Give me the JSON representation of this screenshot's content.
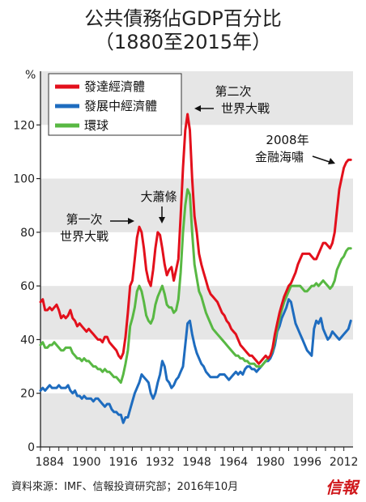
{
  "chart_data": {
    "type": "line",
    "title": "公共債務佔GDP百分比",
    "subtitle": "（1880至2015年）",
    "ylabel": "%",
    "ylim": [
      0,
      140
    ],
    "y_ticks": [
      0,
      20,
      40,
      60,
      80,
      100,
      120
    ],
    "x_ticks": [
      1884,
      1900,
      1916,
      1932,
      1948,
      1964,
      1980,
      1996,
      2012
    ],
    "xlim": [
      1880,
      2016
    ],
    "legend_position": "top-left",
    "grid": "alternating horizontal bands",
    "series": [
      {
        "name": "發達經濟體",
        "color": "#e3101c",
        "x": [
          1880,
          1881,
          1882,
          1883,
          1884,
          1885,
          1886,
          1887,
          1888,
          1889,
          1890,
          1891,
          1892,
          1893,
          1894,
          1895,
          1896,
          1897,
          1898,
          1899,
          1900,
          1901,
          1902,
          1903,
          1904,
          1905,
          1906,
          1907,
          1908,
          1909,
          1910,
          1911,
          1912,
          1913,
          1914,
          1915,
          1916,
          1917,
          1918,
          1919,
          1920,
          1921,
          1922,
          1923,
          1924,
          1925,
          1926,
          1927,
          1928,
          1929,
          1930,
          1931,
          1932,
          1933,
          1934,
          1935,
          1936,
          1937,
          1938,
          1939,
          1940,
          1941,
          1942,
          1943,
          1944,
          1945,
          1946,
          1947,
          1948,
          1949,
          1950,
          1951,
          1952,
          1953,
          1954,
          1955,
          1956,
          1957,
          1958,
          1959,
          1960,
          1961,
          1962,
          1963,
          1964,
          1965,
          1966,
          1967,
          1968,
          1969,
          1970,
          1971,
          1972,
          1973,
          1974,
          1975,
          1976,
          1977,
          1978,
          1979,
          1980,
          1981,
          1982,
          1983,
          1984,
          1985,
          1986,
          1987,
          1988,
          1989,
          1990,
          1991,
          1992,
          1993,
          1994,
          1995,
          1996,
          1997,
          1998,
          1999,
          2000,
          2001,
          2002,
          2003,
          2004,
          2005,
          2006,
          2007,
          2008,
          2009,
          2010,
          2011,
          2012,
          2013,
          2014,
          2015
        ],
        "values": [
          54,
          55,
          51,
          51,
          52,
          51,
          52,
          53,
          51,
          48,
          49,
          48,
          49,
          51,
          48,
          47,
          45,
          46,
          45,
          44,
          43,
          44,
          43,
          42,
          41,
          40,
          40,
          39,
          41,
          41,
          39,
          38,
          37,
          36,
          34,
          33,
          35,
          41,
          50,
          60,
          62,
          70,
          78,
          82,
          80,
          74,
          66,
          62,
          60,
          66,
          74,
          80,
          79,
          74,
          68,
          64,
          66,
          67,
          62,
          66,
          70,
          86,
          104,
          118,
          124,
          118,
          100,
          86,
          80,
          72,
          68,
          65,
          62,
          59,
          57,
          56,
          55,
          54,
          52,
          50,
          49,
          47,
          46,
          44,
          43,
          42,
          40,
          38,
          37,
          36,
          35,
          34,
          34,
          33,
          32,
          31,
          32,
          33,
          34,
          33,
          34,
          37,
          42,
          46,
          50,
          53,
          56,
          58,
          60,
          61,
          63,
          65,
          68,
          70,
          72,
          72,
          72,
          72,
          71,
          70,
          70,
          72,
          74,
          76,
          76,
          75,
          74,
          76,
          80,
          88,
          96,
          100,
          104,
          106,
          107,
          107
        ]
      },
      {
        "name": "發展中經濟體",
        "color": "#1e6cbf",
        "x": [
          1880,
          1881,
          1882,
          1883,
          1884,
          1885,
          1886,
          1887,
          1888,
          1889,
          1890,
          1891,
          1892,
          1893,
          1894,
          1895,
          1896,
          1897,
          1898,
          1899,
          1900,
          1901,
          1902,
          1903,
          1904,
          1905,
          1906,
          1907,
          1908,
          1909,
          1910,
          1911,
          1912,
          1913,
          1914,
          1915,
          1916,
          1917,
          1918,
          1919,
          1920,
          1921,
          1922,
          1923,
          1924,
          1925,
          1926,
          1927,
          1928,
          1929,
          1930,
          1931,
          1932,
          1933,
          1934,
          1935,
          1936,
          1937,
          1938,
          1939,
          1940,
          1941,
          1942,
          1943,
          1944,
          1945,
          1946,
          1947,
          1948,
          1949,
          1950,
          1951,
          1952,
          1953,
          1954,
          1955,
          1956,
          1957,
          1958,
          1959,
          1960,
          1961,
          1962,
          1963,
          1964,
          1965,
          1966,
          1967,
          1968,
          1969,
          1970,
          1971,
          1972,
          1973,
          1974,
          1975,
          1976,
          1977,
          1978,
          1979,
          1980,
          1981,
          1982,
          1983,
          1984,
          1985,
          1986,
          1987,
          1988,
          1989,
          1990,
          1991,
          1992,
          1993,
          1994,
          1995,
          1996,
          1997,
          1998,
          1999,
          2000,
          2001,
          2002,
          2003,
          2004,
          2005,
          2006,
          2007,
          2008,
          2009,
          2010,
          2011,
          2012,
          2013,
          2014,
          2015
        ],
        "values": [
          21,
          22,
          21,
          22,
          23,
          22,
          22,
          22,
          23,
          22,
          22,
          22,
          23,
          21,
          20,
          21,
          19,
          19,
          18,
          19,
          18,
          18,
          18,
          17,
          18,
          18,
          17,
          16,
          15,
          16,
          16,
          14,
          13,
          13,
          12,
          12,
          9,
          11,
          11,
          14,
          17,
          20,
          22,
          24,
          27,
          26,
          25,
          24,
          20,
          18,
          20,
          24,
          27,
          32,
          30,
          25,
          24,
          22,
          23,
          25,
          26,
          28,
          30,
          38,
          46,
          47,
          42,
          38,
          35,
          33,
          31,
          30,
          28,
          27,
          26,
          26,
          26,
          26,
          27,
          27,
          27,
          26,
          25,
          26,
          27,
          28,
          27,
          28,
          27,
          29,
          30,
          30,
          29,
          29,
          28,
          29,
          30,
          31,
          32,
          32,
          33,
          35,
          38,
          43,
          45,
          48,
          50,
          52,
          55,
          54,
          50,
          46,
          44,
          42,
          40,
          38,
          36,
          35,
          34,
          44,
          47,
          46,
          48,
          44,
          42,
          40,
          41,
          43,
          42,
          41,
          40,
          41,
          42,
          43,
          44,
          47
        ]
      },
      {
        "name": "環球",
        "color": "#58b843",
        "x": [
          1880,
          1881,
          1882,
          1883,
          1884,
          1885,
          1886,
          1887,
          1888,
          1889,
          1890,
          1891,
          1892,
          1893,
          1894,
          1895,
          1896,
          1897,
          1898,
          1899,
          1900,
          1901,
          1902,
          1903,
          1904,
          1905,
          1906,
          1907,
          1908,
          1909,
          1910,
          1911,
          1912,
          1913,
          1914,
          1915,
          1916,
          1917,
          1918,
          1919,
          1920,
          1921,
          1922,
          1923,
          1924,
          1925,
          1926,
          1927,
          1928,
          1929,
          1930,
          1931,
          1932,
          1933,
          1934,
          1935,
          1936,
          1937,
          1938,
          1939,
          1940,
          1941,
          1942,
          1943,
          1944,
          1945,
          1946,
          1947,
          1948,
          1949,
          1950,
          1951,
          1952,
          1953,
          1954,
          1955,
          1956,
          1957,
          1958,
          1959,
          1960,
          1961,
          1962,
          1963,
          1964,
          1965,
          1966,
          1967,
          1968,
          1969,
          1970,
          1971,
          1972,
          1973,
          1974,
          1975,
          1976,
          1977,
          1978,
          1979,
          1980,
          1981,
          1982,
          1983,
          1984,
          1985,
          1986,
          1987,
          1988,
          1989,
          1990,
          1991,
          1992,
          1993,
          1994,
          1995,
          1996,
          1997,
          1998,
          1999,
          2000,
          2001,
          2002,
          2003,
          2004,
          2005,
          2006,
          2007,
          2008,
          2009,
          2010,
          2011,
          2012,
          2013,
          2014,
          2015
        ],
        "values": [
          38,
          39,
          37,
          37,
          38,
          38,
          39,
          38,
          37,
          36,
          36,
          37,
          37,
          37,
          35,
          34,
          33,
          33,
          32,
          33,
          32,
          32,
          31,
          30,
          30,
          29,
          29,
          28,
          29,
          28,
          28,
          27,
          26,
          26,
          25,
          24,
          27,
          31,
          36,
          45,
          48,
          52,
          58,
          60,
          58,
          54,
          49,
          47,
          46,
          48,
          53,
          56,
          58,
          60,
          57,
          53,
          52,
          52,
          50,
          51,
          55,
          65,
          80,
          90,
          96,
          94,
          80,
          68,
          63,
          58,
          56,
          53,
          50,
          48,
          46,
          44,
          43,
          42,
          41,
          40,
          39,
          38,
          37,
          36,
          35,
          34,
          34,
          33,
          33,
          32,
          32,
          31,
          31,
          31,
          30,
          30,
          30,
          31,
          32,
          33,
          34,
          36,
          40,
          44,
          48,
          51,
          54,
          56,
          58,
          60,
          60,
          60,
          60,
          60,
          59,
          58,
          58,
          59,
          60,
          60,
          61,
          60,
          61,
          62,
          61,
          60,
          59,
          60,
          62,
          66,
          68,
          70,
          71,
          73,
          74,
          74
        ]
      }
    ],
    "annotations": [
      {
        "lines": [
          "第一次",
          "世界大戰"
        ]
      },
      {
        "lines": [
          "大蕭條"
        ]
      },
      {
        "lines": [
          "第二次",
          "世界大戰"
        ]
      },
      {
        "lines": [
          "2008年",
          "金融海嘯"
        ]
      }
    ]
  },
  "footer": {
    "source": "資料來源：IMF、信報投資研究部；2016年10月",
    "brand": "信報"
  }
}
